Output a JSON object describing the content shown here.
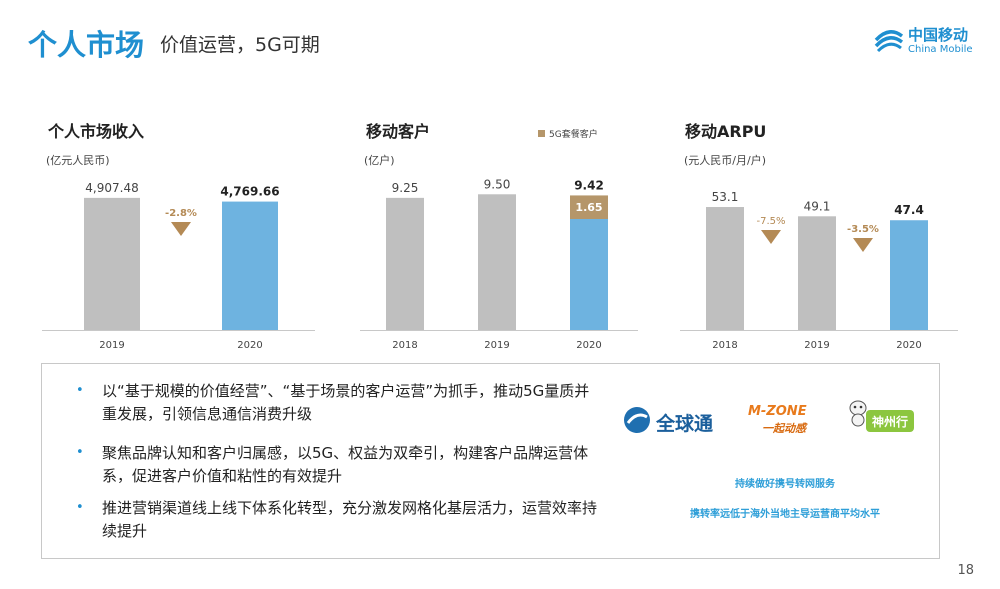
{
  "header": {
    "title": "个人市场",
    "subtitle": "价值运营，5G可期",
    "logo_cn": "中国移动",
    "logo_en": "China Mobile"
  },
  "colors": {
    "blue": "#1f8fd0",
    "bar_gray": "#bfbfbf",
    "bar_blue": "#6eb3e0",
    "bar_gold": "#b5966a",
    "down_arrow": "#b48a55"
  },
  "chart_data": [
    {
      "type": "bar",
      "title": "个人市场收入",
      "unit": "(亿元人民币)",
      "categories": [
        "2019",
        "2020"
      ],
      "values": [
        4907.48,
        4769.66
      ],
      "value_labels": [
        "4,907.48",
        "4,769.66"
      ],
      "ylim": [
        0,
        5200
      ],
      "changes": [
        "-2.8%"
      ]
    },
    {
      "type": "bar",
      "title": "移动客户",
      "unit": "(亿户)",
      "categories": [
        "2018",
        "2019",
        "2020"
      ],
      "values": [
        9.25,
        9.5,
        9.42
      ],
      "value_labels": [
        "9.25",
        "9.50",
        "9.42"
      ],
      "ylim": [
        0,
        10.5
      ],
      "legend": [
        "5G套餐客户"
      ],
      "stacked_5g": {
        "category": "2020",
        "value": 1.65,
        "label": "1.65"
      }
    },
    {
      "type": "bar",
      "title": "移动ARPU",
      "unit": "(元人民币/月/户)",
      "categories": [
        "2018",
        "2019",
        "2020"
      ],
      "values": [
        53.1,
        49.1,
        47.4
      ],
      "value_labels": [
        "53.1",
        "49.1",
        "47.4"
      ],
      "ylim": [
        0,
        57
      ],
      "changes": [
        "-7.5%",
        "-3.5%"
      ]
    }
  ],
  "bullets": [
    "以“基于规模的价值经营”、“基于场景的客户运营”为抓手，推动5G量质并重发展，引领信息通信消费升级",
    "聚焦品牌认知和客户归属感，以5G、权益为双牵引，构建客户品牌运营体系，促进客户价值和粘性的有效提升",
    "推进营销渠道线上线下体系化转型，充分激发网格化基层活力，运营效率持续提升"
  ],
  "brands": {
    "gotone": "全球通",
    "mzone": "M-ZONE",
    "mzone_slogan": "一起动感",
    "easyown": "神州行",
    "note1": "持续做好携号转网服务",
    "note2": "携转率远低于海外当地主导运营商平均水平"
  },
  "page_number": "18"
}
